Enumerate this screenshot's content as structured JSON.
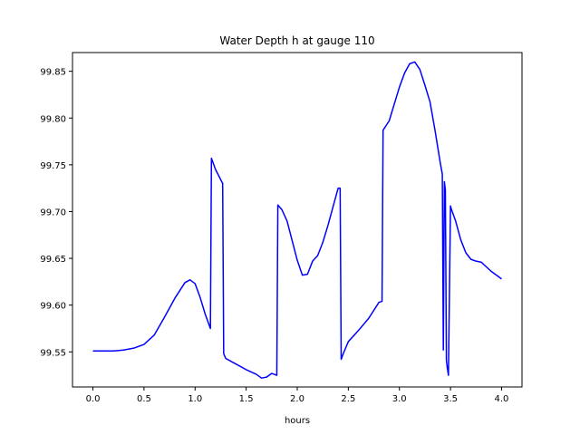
{
  "chart_data": {
    "type": "line",
    "title": "Water Depth h at gauge 110",
    "xlabel": "hours",
    "ylabel": "",
    "xlim": [
      -0.2,
      4.2
    ],
    "ylim": [
      99.5125,
      99.87
    ],
    "xticks": [
      0.0,
      0.5,
      1.0,
      1.5,
      2.0,
      2.5,
      3.0,
      3.5,
      4.0
    ],
    "xtick_labels": [
      "0.0",
      "0.5",
      "1.0",
      "1.5",
      "2.0",
      "2.5",
      "3.0",
      "3.5",
      "4.0"
    ],
    "yticks": [
      99.55,
      99.6,
      99.65,
      99.7,
      99.75,
      99.8,
      99.85
    ],
    "ytick_labels": [
      "99.55",
      "99.60",
      "99.65",
      "99.70",
      "99.75",
      "99.80",
      "99.85"
    ],
    "grid": false,
    "legend": "none",
    "series": [
      {
        "color": "#0000ff",
        "x": [
          0.0,
          0.1,
          0.2,
          0.3,
          0.4,
          0.5,
          0.6,
          0.7,
          0.8,
          0.9,
          0.95,
          1.0,
          1.05,
          1.1,
          1.15,
          1.16,
          1.2,
          1.27,
          1.28,
          1.3,
          1.4,
          1.5,
          1.6,
          1.65,
          1.7,
          1.75,
          1.8,
          1.81,
          1.85,
          1.9,
          2.0,
          2.05,
          2.1,
          2.15,
          2.2,
          2.25,
          2.3,
          2.35,
          2.4,
          2.42,
          2.43,
          2.45,
          2.5,
          2.6,
          2.7,
          2.8,
          2.83,
          2.84,
          2.9,
          3.0,
          3.05,
          3.1,
          3.15,
          3.2,
          3.25,
          3.3,
          3.35,
          3.4,
          3.42,
          3.43,
          3.44,
          3.45,
          3.46,
          3.47,
          3.48,
          3.5,
          3.51,
          3.55,
          3.6,
          3.65,
          3.7,
          3.75,
          3.8,
          3.85,
          3.9,
          3.95,
          4.0
        ],
        "y": [
          99.551,
          99.551,
          99.551,
          99.552,
          99.554,
          99.558,
          99.568,
          99.587,
          99.607,
          99.624,
          99.627,
          99.623,
          99.608,
          99.59,
          99.575,
          99.757,
          99.745,
          99.73,
          99.548,
          99.543,
          99.537,
          99.531,
          99.526,
          99.522,
          99.523,
          99.527,
          99.525,
          99.707,
          99.702,
          99.69,
          99.648,
          99.632,
          99.633,
          99.647,
          99.653,
          99.667,
          99.685,
          99.705,
          99.725,
          99.725,
          99.542,
          99.548,
          99.561,
          99.573,
          99.586,
          99.603,
          99.604,
          99.787,
          99.797,
          99.833,
          99.848,
          99.858,
          99.86,
          99.852,
          99.835,
          99.817,
          99.786,
          99.752,
          99.74,
          99.552,
          99.732,
          99.723,
          99.541,
          99.532,
          99.525,
          99.706,
          99.702,
          99.69,
          99.67,
          99.656,
          99.649,
          99.647,
          99.646,
          99.641,
          99.636,
          99.632,
          99.628
        ]
      }
    ]
  }
}
